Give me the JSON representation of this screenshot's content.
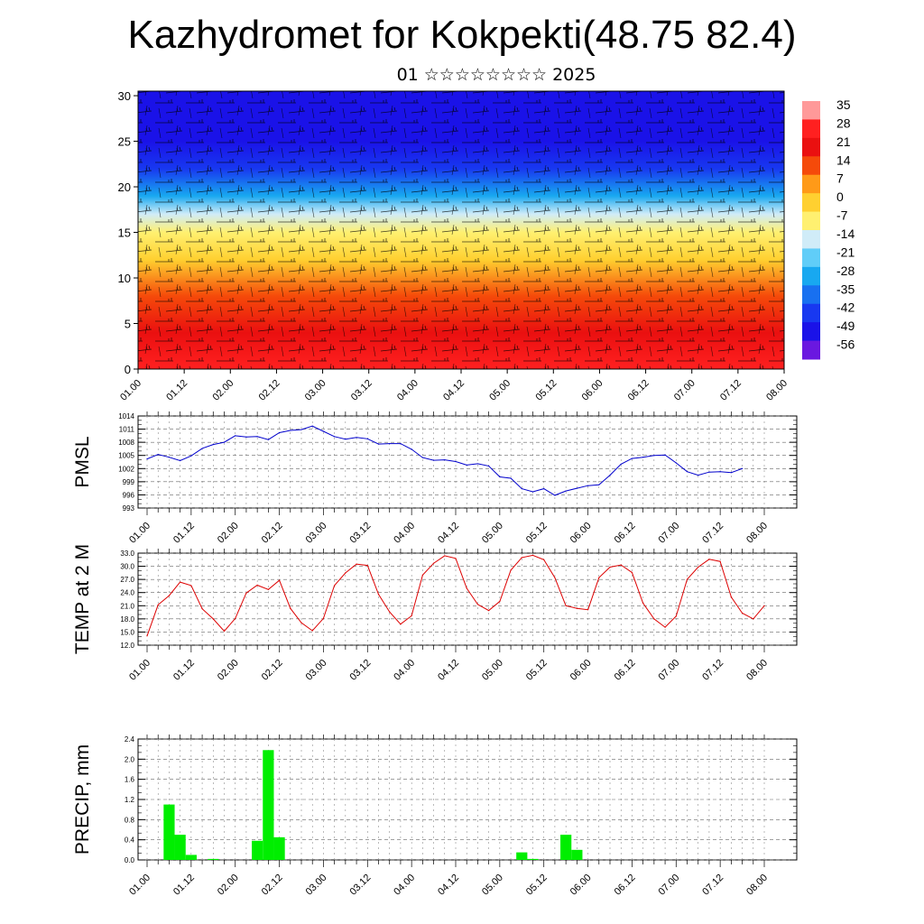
{
  "title": "Kazhydromet for Kokpekti(48.75 82.4)",
  "subtitle": "01 ☆☆☆☆☆☆☆☆ 2025",
  "chart_data": [
    {
      "type": "heatmap",
      "name": "temperature-wind cross section",
      "title": "",
      "xlabel": "",
      "ylabel": "",
      "x_ticks": [
        "01.00",
        "01.12",
        "02.00",
        "02.12",
        "03.00",
        "03.12",
        "04.00",
        "04.12",
        "05.00",
        "05.12",
        "06.00",
        "06.12",
        "07.00",
        "07.12",
        "08.00"
      ],
      "y_ticks": [
        0,
        5,
        10,
        15,
        20,
        25,
        30
      ],
      "ylim": [
        0,
        30.5
      ],
      "colorbar": {
        "labels": [
          "35",
          "28",
          "21",
          "14",
          "7",
          "0",
          "-7",
          "-14",
          "-21",
          "-28",
          "-35",
          "-42",
          "-49",
          "-56"
        ],
        "colors": [
          "#ff9999",
          "#ff2020",
          "#ea1010",
          "#f54a0a",
          "#ff9a18",
          "#ffd030",
          "#fff070",
          "#d0ecf8",
          "#60cdf8",
          "#18a8f0",
          "#1870f0",
          "#1838f0",
          "#1a12e8",
          "#6a18e0"
        ]
      },
      "temperature_profile": [
        {
          "height": 0,
          "value": 33
        },
        {
          "height": 4,
          "value": 24
        },
        {
          "height": 8,
          "value": 14
        },
        {
          "height": 12,
          "value": 4
        },
        {
          "height": 15,
          "value": -7
        },
        {
          "height": 17,
          "value": -14
        },
        {
          "height": 19,
          "value": -28
        },
        {
          "height": 22,
          "value": -42
        },
        {
          "height": 25,
          "value": -56
        },
        {
          "height": 28,
          "value": -49
        },
        {
          "height": 30.5,
          "value": -56
        }
      ]
    },
    {
      "type": "line",
      "ylabel": "PMSL",
      "color": "#0000cc",
      "ylim": [
        993,
        1014
      ],
      "y_ticks": [
        993,
        996,
        999,
        1002,
        1005,
        1008,
        1011,
        1014
      ],
      "x_ticks": [
        "01.00",
        "01.12",
        "02.00",
        "02.12",
        "03.00",
        "03.12",
        "04.00",
        "04.12",
        "05.00",
        "05.12",
        "06.00",
        "06.12",
        "07.00",
        "07.12",
        "08.00"
      ],
      "x_step_hours": 3,
      "values": [
        1004.2,
        1005.2,
        1004.6,
        1003.8,
        1004.9,
        1006.6,
        1007.5,
        1008.0,
        1009.5,
        1009.2,
        1009.3,
        1008.6,
        1010.2,
        1010.7,
        1010.9,
        1011.7,
        1010.5,
        1009.3,
        1008.7,
        1009.1,
        1008.8,
        1007.6,
        1007.7,
        1007.7,
        1006.4,
        1004.5,
        1003.9,
        1004.0,
        1003.6,
        1002.8,
        1003.1,
        1002.6,
        1000.1,
        999.8,
        997.4,
        996.7,
        997.4,
        995.9,
        996.9,
        997.5,
        998.1,
        998.3,
        1000.5,
        1003.0,
        1004.3,
        1004.6,
        1005.0,
        1005.1,
        1003.3,
        1001.3,
        1000.5,
        1001.2,
        1001.3,
        1001.1,
        1002.0
      ]
    },
    {
      "type": "line",
      "ylabel": "TEMP at 2 M",
      "color": "#dd0000",
      "ylim": [
        12.0,
        33.0
      ],
      "y_ticks": [
        "12.0",
        "15.0",
        "18.0",
        "21.0",
        "24.0",
        "27.0",
        "30.0",
        "33.0"
      ],
      "x_ticks": [
        "01.00",
        "01.12",
        "02.00",
        "02.12",
        "03.00",
        "03.12",
        "04.00",
        "04.12",
        "05.00",
        "05.12",
        "06.00",
        "06.12",
        "07.00",
        "07.12",
        "08.00"
      ],
      "x_step_hours": 3,
      "values": [
        14.1,
        21.2,
        23.3,
        26.4,
        25.6,
        20.3,
        18.0,
        15.2,
        18.1,
        23.9,
        25.7,
        24.7,
        26.8,
        20.4,
        17.1,
        15.3,
        18.1,
        25.6,
        28.5,
        30.5,
        30.2,
        23.6,
        19.6,
        16.8,
        18.7,
        28.0,
        30.7,
        32.4,
        31.8,
        25.0,
        21.3,
        19.9,
        22.0,
        29.1,
        32.0,
        32.5,
        31.5,
        27.4,
        21.0,
        20.4,
        20.1,
        27.4,
        29.8,
        30.3,
        28.6,
        21.6,
        18.0,
        16.1,
        18.6,
        27.0,
        29.8,
        31.6,
        31.1,
        23.0,
        19.3,
        18.0,
        21.0
      ]
    },
    {
      "type": "bar",
      "ylabel": "PRECIP, mm",
      "color": "#00ee00",
      "ylim": [
        0,
        2.4
      ],
      "y_ticks": [
        "0.0",
        "0.4",
        "0.8",
        "1.2",
        "1.6",
        "2.0",
        "2.4"
      ],
      "x_ticks": [
        "01.00",
        "01.12",
        "02.00",
        "02.12",
        "03.00",
        "03.12",
        "04.00",
        "04.12",
        "05.00",
        "05.12",
        "06.00",
        "06.12",
        "07.00",
        "07.12",
        "08.00"
      ],
      "x_step_hours": 3,
      "values": [
        0,
        0,
        1.1,
        0.5,
        0.1,
        0,
        0.02,
        0,
        0,
        0,
        0.38,
        2.18,
        0.45,
        0,
        0,
        0,
        0,
        0,
        0,
        0,
        0,
        0,
        0,
        0,
        0,
        0,
        0,
        0,
        0,
        0,
        0,
        0,
        0,
        0,
        0.15,
        0.02,
        0,
        0,
        0.5,
        0.2,
        0,
        0,
        0,
        0,
        0,
        0,
        0,
        0,
        0,
        0,
        0,
        0,
        0,
        0,
        0,
        0
      ]
    }
  ]
}
